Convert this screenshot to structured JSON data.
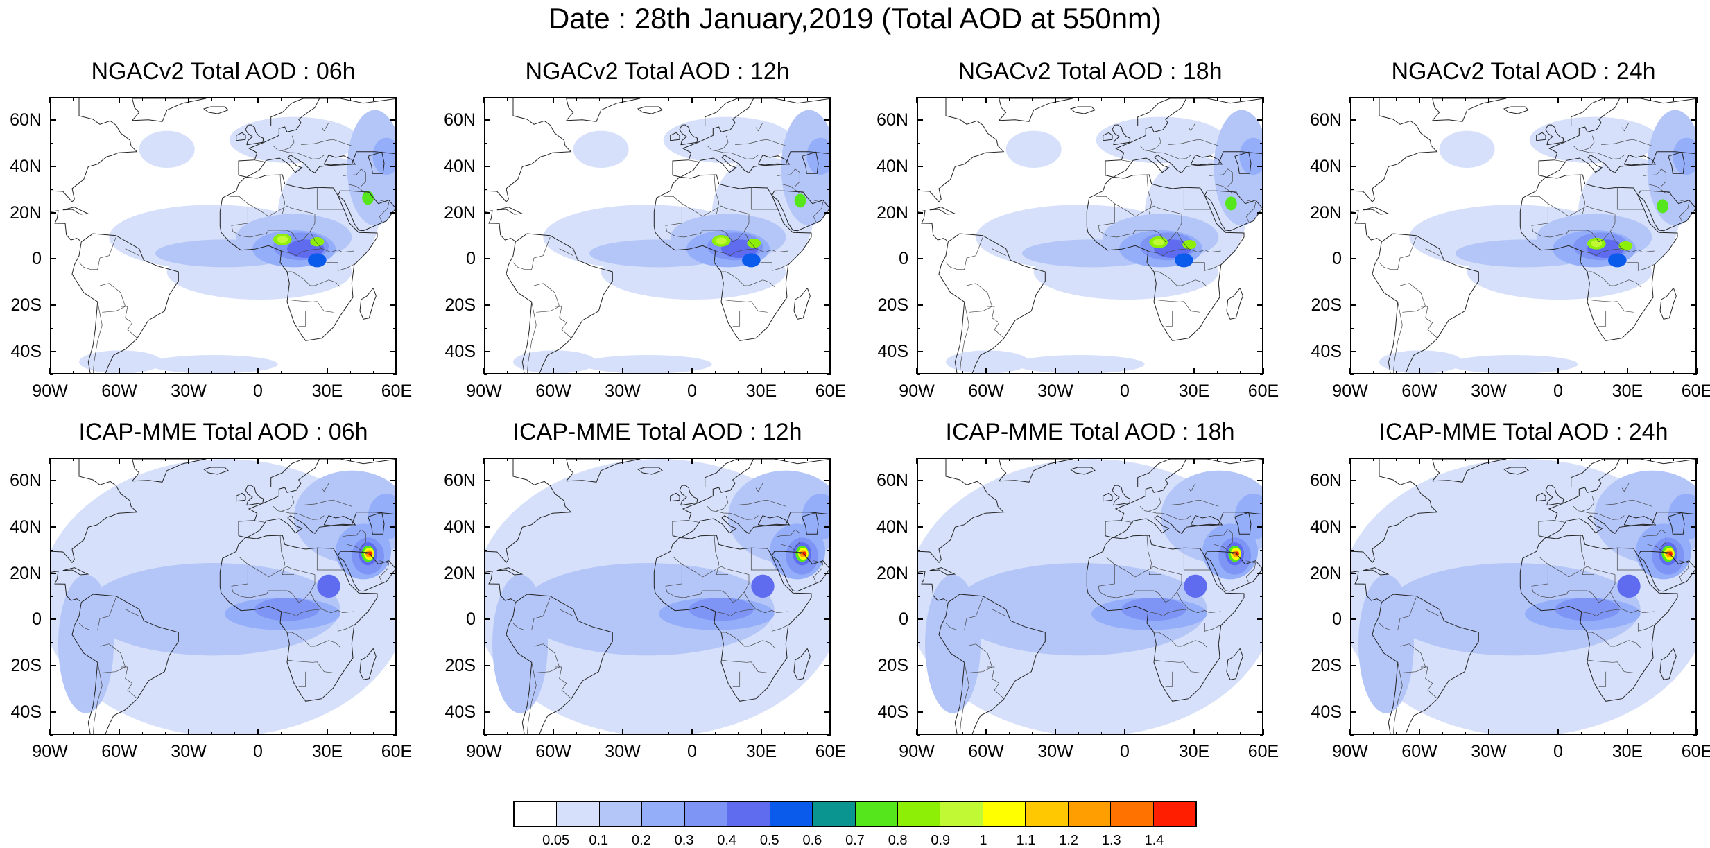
{
  "title": "Date : 28th January,2019 (Total AOD at 550nm)",
  "panels": [
    {
      "title": "NGACv2 Total AOD : 06h",
      "model": "NGACv2",
      "hour": "06h"
    },
    {
      "title": "NGACv2 Total AOD : 12h",
      "model": "NGACv2",
      "hour": "12h"
    },
    {
      "title": "NGACv2 Total AOD : 18h",
      "model": "NGACv2",
      "hour": "18h"
    },
    {
      "title": "NGACv2 Total AOD : 24h",
      "model": "NGACv2",
      "hour": "24h"
    },
    {
      "title": "ICAP-MME Total AOD : 06h",
      "model": "ICAP-MME",
      "hour": "06h"
    },
    {
      "title": "ICAP-MME Total AOD : 12h",
      "model": "ICAP-MME",
      "hour": "12h"
    },
    {
      "title": "ICAP-MME Total AOD : 18h",
      "model": "ICAP-MME",
      "hour": "18h"
    },
    {
      "title": "ICAP-MME Total AOD : 24h",
      "model": "ICAP-MME",
      "hour": "24h"
    }
  ],
  "lat_ticks": [
    {
      "label": "60N",
      "value": 60
    },
    {
      "label": "40N",
      "value": 40
    },
    {
      "label": "20N",
      "value": 20
    },
    {
      "label": "0",
      "value": 0
    },
    {
      "label": "20S",
      "value": -20
    },
    {
      "label": "40S",
      "value": -40
    }
  ],
  "lon_ticks": [
    {
      "label": "90W",
      "value": -90
    },
    {
      "label": "60W",
      "value": -60
    },
    {
      "label": "30W",
      "value": -30
    },
    {
      "label": "0",
      "value": 0
    },
    {
      "label": "30E",
      "value": 30
    },
    {
      "label": "60E",
      "value": 60
    }
  ],
  "map_extent": {
    "lon": [
      -90,
      60
    ],
    "lat": [
      -50,
      70
    ]
  },
  "colorbar": {
    "labels": [
      "0.05",
      "0.1",
      "0.2",
      "0.3",
      "0.4",
      "0.5",
      "0.6",
      "0.7",
      "0.8",
      "0.9",
      "1",
      "1.1",
      "1.2",
      "1.3",
      "1.4"
    ],
    "colors": [
      "#ffffff",
      "#d6e0fa",
      "#b4c5f8",
      "#94aefa",
      "#7f95f5",
      "#5f6cf0",
      "#0a5aeb",
      "#0b9591",
      "#55e61b",
      "#8def05",
      "#c1fa35",
      "#ffff00",
      "#ffc800",
      "#ff9e00",
      "#ff7200",
      "#ff1e00"
    ]
  }
}
